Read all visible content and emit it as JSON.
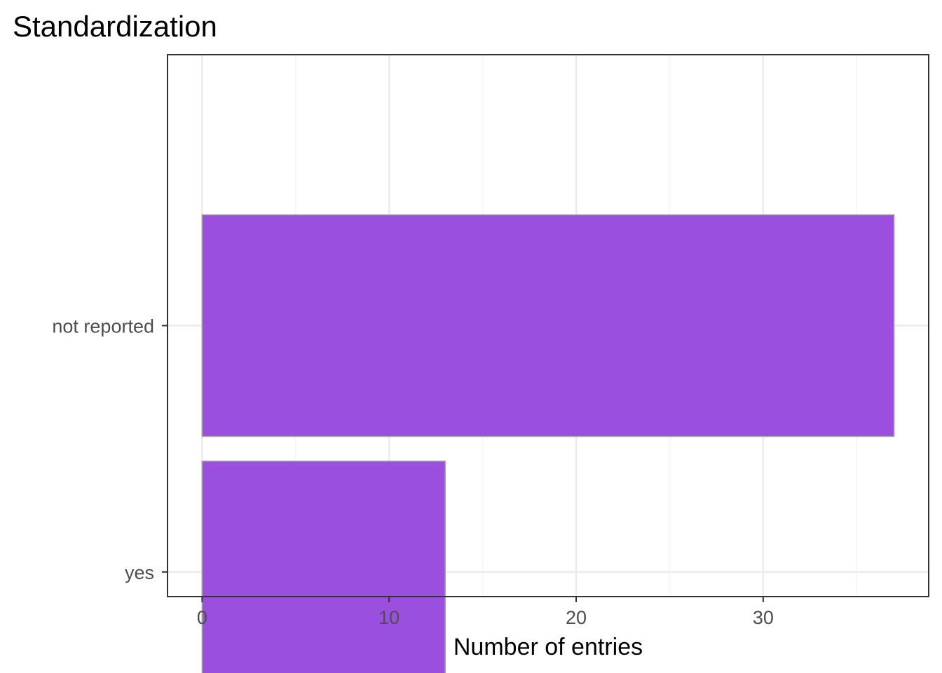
{
  "chart_data": {
    "type": "bar",
    "orientation": "horizontal",
    "title": "Standardization",
    "xlabel": "Number of entries",
    "ylabel": "",
    "categories": [
      "not reported",
      "yes"
    ],
    "values": [
      37,
      13
    ],
    "xlim": [
      -1.85,
      38.85
    ],
    "xticks": [
      0,
      10,
      20,
      30
    ],
    "xtick_labels": [
      "0",
      "10",
      "20",
      "30"
    ],
    "grid": true,
    "legend": "none",
    "colors": {
      "bar_fill": "#9b4fde",
      "bar_outline": "#a6a6a6",
      "panel_border": "#333333",
      "grid_major": "#ebebeb",
      "grid_minor": "#f5f5f5",
      "tick_label": "#4d4d4d"
    }
  }
}
